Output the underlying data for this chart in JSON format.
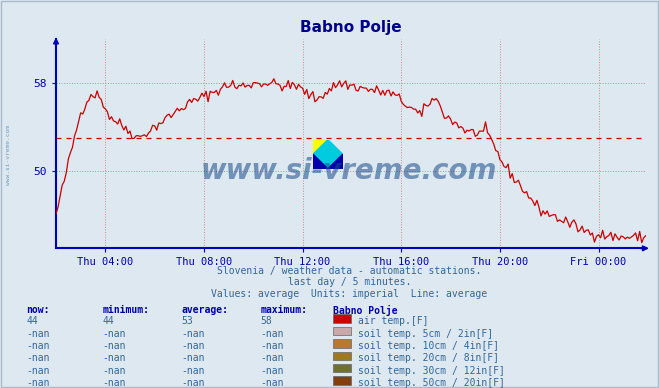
{
  "title": "Babno Polje",
  "background_color": "#dde8f0",
  "plot_bg_color": "#dde8f0",
  "line_color": "#cc0000",
  "avg_line_color": "#cc0000",
  "avg_value": 53,
  "y_min": 44,
  "y_max": 62,
  "y_ticks": [
    50,
    58
  ],
  "ylim_bottom": 43,
  "ylim_top": 62,
  "x_labels": [
    "Thu 04:00",
    "Thu 08:00",
    "Thu 12:00",
    "Thu 16:00",
    "Thu 20:00",
    "Fri 00:00"
  ],
  "x_tick_positions": [
    24,
    72,
    120,
    168,
    216,
    264
  ],
  "n_points": 288,
  "subtitle_lines": [
    "Slovenia / weather data - automatic stations.",
    "last day / 5 minutes.",
    "Values: average  Units: imperial  Line: average"
  ],
  "watermark": "www.si-vreme.com",
  "side_text": "www.si-vreme.com",
  "legend_headers": [
    "now:",
    "minimum:",
    "average:",
    "maximum:",
    "Babno Polje"
  ],
  "legend_rows": [
    {
      "now": "44",
      "min": "44",
      "avg": "53",
      "max": "58",
      "color": "#cc0000",
      "label": "air temp.[F]"
    },
    {
      "now": "-nan",
      "min": "-nan",
      "avg": "-nan",
      "max": "-nan",
      "color": "#c8a8a8",
      "label": "soil temp. 5cm / 2in[F]"
    },
    {
      "now": "-nan",
      "min": "-nan",
      "avg": "-nan",
      "max": "-nan",
      "color": "#b87830",
      "label": "soil temp. 10cm / 4in[F]"
    },
    {
      "now": "-nan",
      "min": "-nan",
      "avg": "-nan",
      "max": "-nan",
      "color": "#a07820",
      "label": "soil temp. 20cm / 8in[F]"
    },
    {
      "now": "-nan",
      "min": "-nan",
      "avg": "-nan",
      "max": "-nan",
      "color": "#707030",
      "label": "soil temp. 30cm / 12in[F]"
    },
    {
      "now": "-nan",
      "min": "-nan",
      "avg": "-nan",
      "max": "-nan",
      "color": "#804010",
      "label": "soil temp. 50cm / 20in[F]"
    }
  ],
  "grid_color": "#cc8888",
  "axis_color": "#0000bb",
  "tick_color": "#0000aa",
  "text_color": "#336699",
  "header_color": "#0000aa",
  "title_color": "#000088"
}
